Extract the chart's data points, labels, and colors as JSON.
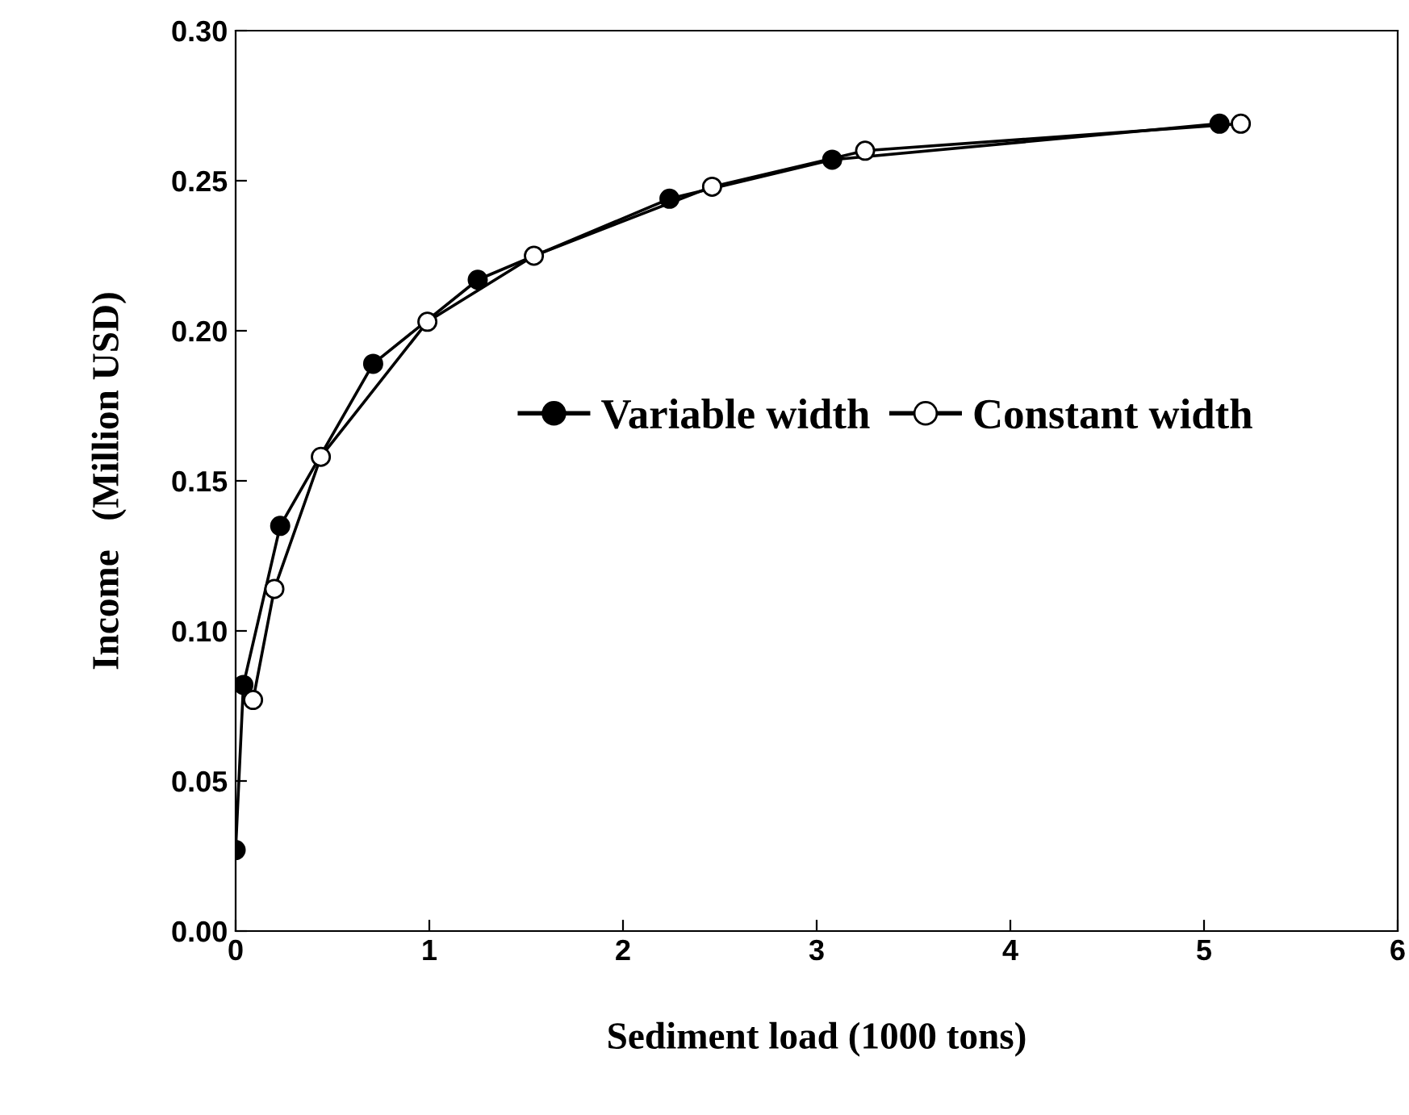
{
  "chart_data": {
    "type": "line",
    "xlabel": "Sediment load (1000 tons)",
    "ylabel": "Income   (Million USD)",
    "xlim": [
      0,
      6
    ],
    "xticks": [
      0,
      1,
      2,
      3,
      4,
      5,
      6
    ],
    "ylim": [
      0,
      0.3
    ],
    "yticks": [
      {
        "value": 0,
        "label": "0.00"
      },
      {
        "value": 0.05,
        "label": "0.05"
      },
      {
        "value": 0.1,
        "label": "0.10"
      },
      {
        "value": 0.15,
        "label": "0.15"
      },
      {
        "value": 0.2,
        "label": "0.20"
      },
      {
        "value": 0.25,
        "label": "0.25"
      },
      {
        "value": 0.3,
        "label": "0.30"
      }
    ],
    "grid": false,
    "legend": "center",
    "line_style": "solid",
    "marker": "circle",
    "series": [
      {
        "name": "Variable width",
        "color": "#000000",
        "x": [
          0,
          0.04,
          0.23,
          0.71,
          1.25,
          2.24,
          3.08,
          5.08
        ],
        "values": [
          0.027,
          0.082,
          0.135,
          0.189,
          0.217,
          0.244,
          0.257,
          0.269
        ]
      },
      {
        "name": "Constant width",
        "color": "#000000",
        "x": [
          0.09,
          0.2,
          0.44,
          0.99,
          1.54,
          2.46,
          3.25,
          5.19
        ],
        "values": [
          0.077,
          0.114,
          0.158,
          0.203,
          0.225,
          0.248,
          0.26,
          0.269
        ]
      }
    ]
  }
}
